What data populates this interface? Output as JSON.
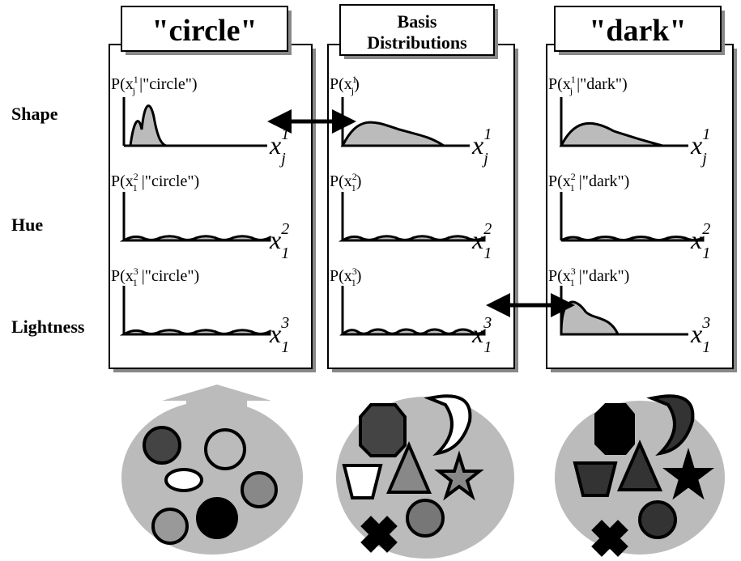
{
  "row_labels": [
    "Shape",
    "Hue",
    "Lightness"
  ],
  "columns": [
    {
      "title": [
        "\"circle\""
      ],
      "plots": [
        {
          "label": {
            "pre": "P(x",
            "sup": "1",
            "sub": "j",
            "post": " |\"circle\")"
          },
          "axis": {
            "base": "x",
            "sup": "1",
            "sub": "j"
          }
        },
        {
          "label": {
            "pre": "P(x",
            "sup": "2",
            "sub": "1",
            "post": " |\"circle\")"
          },
          "axis": {
            "base": "x",
            "sup": "2",
            "sub": "1"
          }
        },
        {
          "label": {
            "pre": "P(x",
            "sup": "3",
            "sub": "1",
            "post": " |\"circle\")"
          },
          "axis": {
            "base": "x",
            "sup": "3",
            "sub": "1"
          }
        }
      ]
    },
    {
      "title": [
        "Basis",
        "Distributions"
      ],
      "plots": [
        {
          "label": {
            "pre": "P(x",
            "sup": "1",
            "sub": "j",
            "post": ")"
          },
          "axis": {
            "base": "x",
            "sup": "1",
            "sub": "j"
          }
        },
        {
          "label": {
            "pre": "P(x",
            "sup": "2",
            "sub": "1",
            "post": ")"
          },
          "axis": {
            "base": "x",
            "sup": "2",
            "sub": "1"
          }
        },
        {
          "label": {
            "pre": "P(x",
            "sup": "3",
            "sub": "1",
            "post": ")"
          },
          "axis": {
            "base": "x",
            "sup": "3",
            "sub": "1"
          }
        }
      ]
    },
    {
      "title": [
        "\"dark\""
      ],
      "plots": [
        {
          "label": {
            "pre": "P(x",
            "sup": "1",
            "sub": "j",
            "post": " |\"dark\")"
          },
          "axis": {
            "base": "x",
            "sup": "1",
            "sub": "j"
          }
        },
        {
          "label": {
            "pre": "P(x",
            "sup": "2",
            "sub": "1",
            "post": " |\"dark\")"
          },
          "axis": {
            "base": "x",
            "sup": "2",
            "sub": "1"
          }
        },
        {
          "label": {
            "pre": "P(x",
            "sup": "3",
            "sub": "1",
            "post": " |\"dark\")"
          },
          "axis": {
            "base": "x",
            "sup": "3",
            "sub": "1"
          }
        }
      ]
    }
  ]
}
